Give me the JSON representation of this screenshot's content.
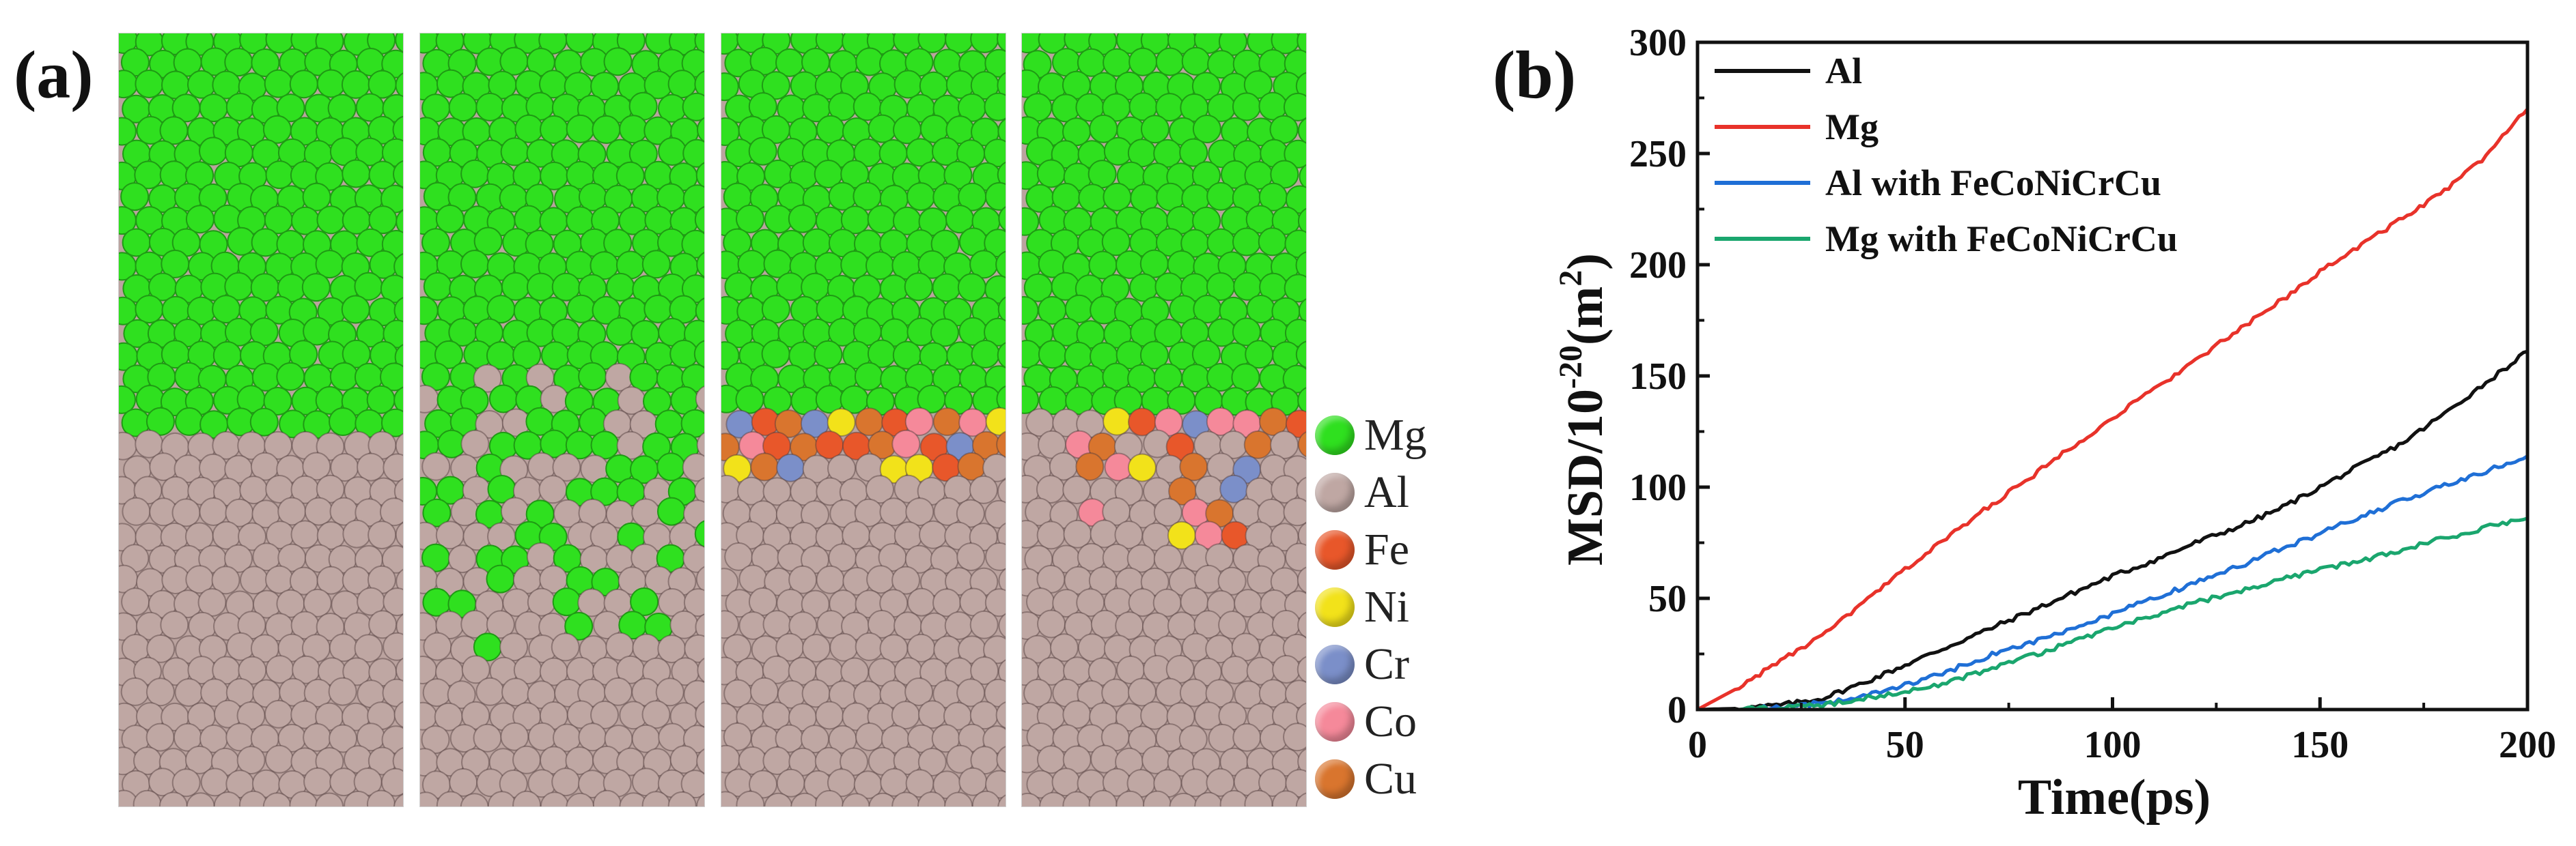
{
  "figure": {
    "panel_a_label": "(a)",
    "panel_b_label": "(b)",
    "panels": [
      {
        "name": "pure-mg-al-interface"
      },
      {
        "name": "mixed-mg-al-interface"
      },
      {
        "name": "feconicrcu-sharp-interface"
      },
      {
        "name": "feconicrcu-diffused-interface"
      }
    ],
    "legend": [
      {
        "label": "Mg",
        "color": "#2fe01f"
      },
      {
        "label": "Al",
        "color": "#bfa7a3"
      },
      {
        "label": "Fe",
        "color": "#e8572a"
      },
      {
        "label": "Ni",
        "color": "#f2e21a"
      },
      {
        "label": "Cr",
        "color": "#7b8fc9"
      },
      {
        "label": "Co",
        "color": "#f5899a"
      },
      {
        "label": "Cu",
        "color": "#d9752e"
      }
    ]
  },
  "chart_data": {
    "type": "line",
    "title": "",
    "xlabel": "Time(ps)",
    "ylabel": "MSD/10",
    "ylabel_sup": "-20",
    "ylabel_tail": "(m",
    "ylabel_sup2": "2",
    "ylabel_end": ")",
    "xlim": [
      0,
      200
    ],
    "ylim": [
      0,
      300
    ],
    "xticks": [
      "0",
      "50",
      "100",
      "150",
      "200"
    ],
    "yticks": [
      "0",
      "50",
      "100",
      "150",
      "200",
      "250",
      "300"
    ],
    "legend_position": "top-left",
    "x": [
      0,
      10,
      20,
      30,
      40,
      50,
      60,
      70,
      80,
      90,
      100,
      110,
      120,
      130,
      140,
      150,
      160,
      170,
      180,
      190,
      200
    ],
    "series": [
      {
        "name": "Al",
        "color": "#111111",
        "values": [
          0,
          0.5,
          2,
          5,
          12,
          20,
          28,
          36,
          44,
          52,
          60,
          67,
          75,
          82,
          90,
          100,
          110,
          120,
          133,
          147,
          161
        ]
      },
      {
        "name": "Mg",
        "color": "#e8322a",
        "values": [
          0,
          10,
          22,
          33,
          48,
          63,
          77,
          91,
          104,
          118,
          131,
          144,
          157,
          170,
          183,
          197,
          209,
          221,
          233,
          249,
          270
        ]
      },
      {
        "name": "Al with FeCoNiCrCu",
        "color": "#1f6fd6",
        "values": [
          0,
          0,
          1,
          3,
          6,
          11,
          17,
          24,
          30,
          36,
          43,
          50,
          57,
          64,
          72,
          79,
          87,
          94,
          101,
          107,
          114
        ]
      },
      {
        "name": "Mg with FeCoNiCrCu",
        "color": "#1aa66e",
        "values": [
          0,
          0,
          1,
          2,
          5,
          8,
          12,
          18,
          24,
          30,
          37,
          42,
          48,
          53,
          58,
          63,
          67,
          72,
          77,
          82,
          86
        ]
      }
    ]
  }
}
